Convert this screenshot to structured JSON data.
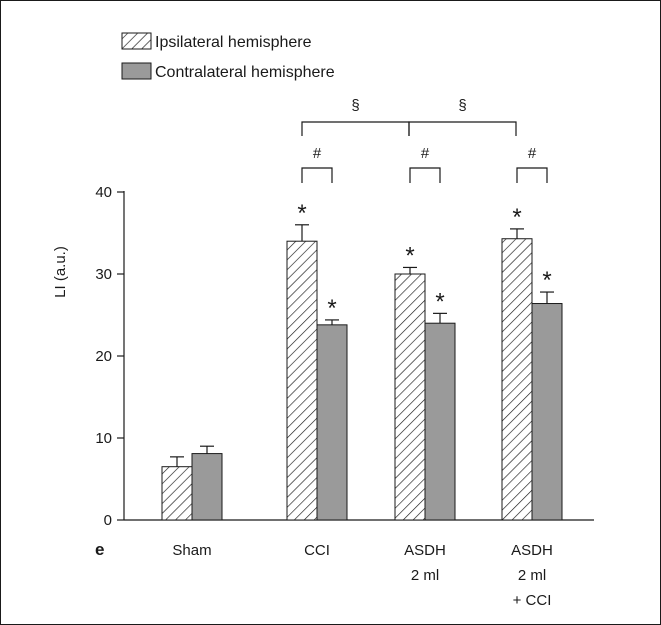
{
  "panel_label": "e",
  "colors": {
    "axis": "#1a1a1a",
    "hatch_fill": "#ffffff",
    "solid_fill": "#9a9a9a"
  },
  "chart_data": {
    "type": "bar",
    "ylabel": "LI (a.u.)",
    "xlabel": "",
    "ylim": [
      0,
      40
    ],
    "yticks": [
      "0",
      "10",
      "20",
      "30",
      "40"
    ],
    "legend_position": "top-left",
    "categories": [
      [
        "Sham"
      ],
      [
        "CCI"
      ],
      [
        "ASDH",
        "2 ml"
      ],
      [
        "ASDH",
        "2 ml",
        "+ CCI"
      ]
    ],
    "series": [
      {
        "name": "Ipsilateral hemisphere",
        "pattern": "hatched",
        "values": [
          6.5,
          34,
          30,
          34.3
        ],
        "errors": [
          1.2,
          2.0,
          0.8,
          1.2
        ],
        "markers": [
          "",
          "*",
          "*",
          "*"
        ]
      },
      {
        "name": "Contralateral hemisphere",
        "pattern": "solid",
        "values": [
          8.1,
          23.8,
          24,
          26.4
        ],
        "errors": [
          0.9,
          0.6,
          1.2,
          1.4
        ],
        "markers": [
          "",
          "*",
          "*",
          "*"
        ]
      }
    ],
    "pair_brackets": [
      {
        "category": 1,
        "symbol": "#"
      },
      {
        "category": 2,
        "symbol": "#"
      },
      {
        "category": 3,
        "symbol": "#"
      }
    ],
    "group_brackets": [
      {
        "from": 1,
        "to": 2,
        "symbol": "§"
      },
      {
        "from": 2,
        "to": 3,
        "symbol": "§"
      }
    ]
  }
}
